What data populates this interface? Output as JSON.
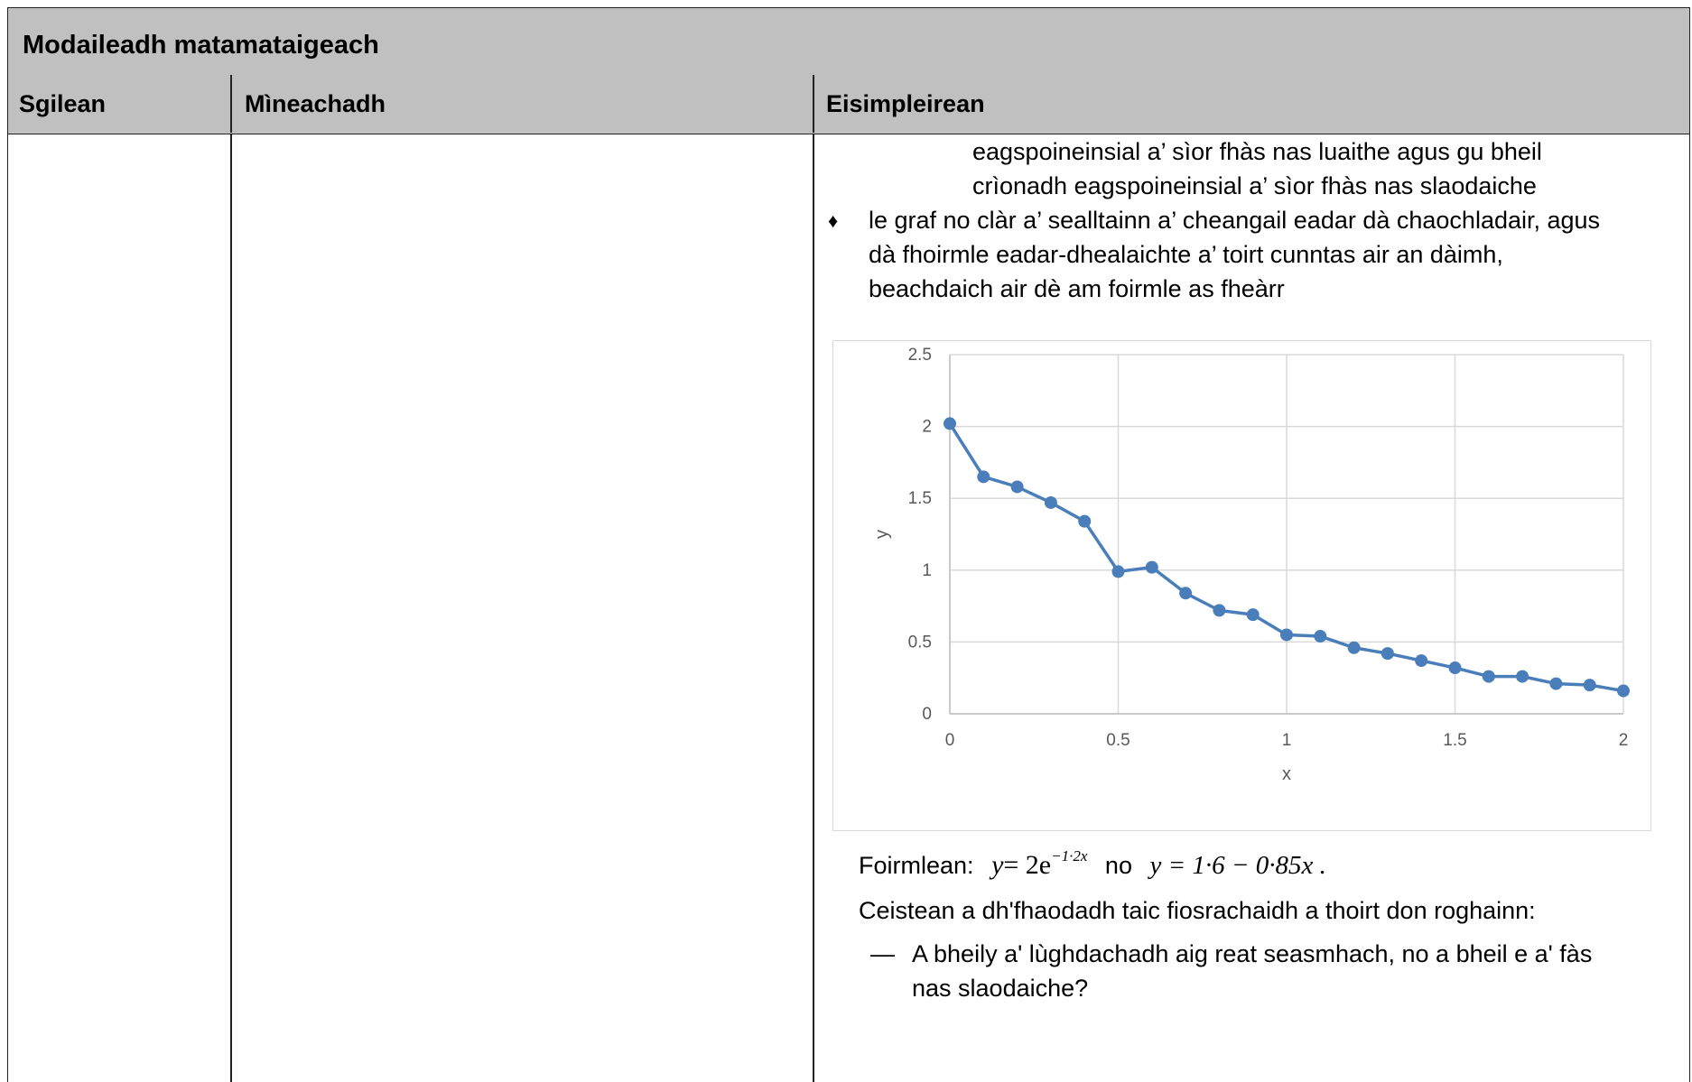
{
  "title": "Modaileadh matamataigeach",
  "headers": {
    "col1": "Sgilean",
    "col2": "Mìneachadh",
    "col3": "Eisimpleirean"
  },
  "examples": {
    "cont_line1": "eagspoineinsial a’ sìor fhàs nas luaithe agus gu bheil",
    "cont_line2": "crìonadh eagspoineinsial a’ sìor fhàs nas slaodaiche",
    "bullet_symbol": "♦",
    "bullet_line1": "le graf no clàr a’ sealltainn a’ cheangail eadar dà chaochladair, agus",
    "bullet_line2": "dà fhoirmle eadar-dhealaichte a’ toirt cunntas air an dàimh,",
    "bullet_line3": "beachdaich air dè am foirmle as fheàrr",
    "formula_label": "Foirmlean:",
    "formula1_lhs": "y",
    "formula1_rhs": "= 2e",
    "formula1_exp": "−1·2x",
    "formula_or": "no",
    "formula2": "y = 1·6 − 0·85x .",
    "question_intro": "Ceistean a dh'fhaodadh taic fiosrachaidh a thoirt don roghainn:",
    "dash": "—",
    "question_line1": "A bheily a' lùghdachadh aig reat seasmhach, no a bheil e a' fàs",
    "question_line2": "nas slaodaiche?"
  },
  "chart_data": {
    "type": "line",
    "xlabel": "x",
    "ylabel": "y",
    "xlim": [
      0,
      2
    ],
    "ylim": [
      0,
      2.5
    ],
    "xticks": [
      "0",
      "0.5",
      "1",
      "1.5",
      "2"
    ],
    "yticks": [
      "0",
      "0.5",
      "1",
      "1.5",
      "2",
      "2.5"
    ],
    "grid": true,
    "color": "#4a7ebb",
    "x": [
      0,
      0.1,
      0.2,
      0.3,
      0.4,
      0.5,
      0.6,
      0.7,
      0.8,
      0.9,
      1.0,
      1.1,
      1.2,
      1.3,
      1.4,
      1.5,
      1.6,
      1.7,
      1.8,
      1.9,
      2.0
    ],
    "y": [
      2.02,
      1.65,
      1.58,
      1.47,
      1.34,
      0.99,
      1.02,
      0.84,
      0.72,
      0.69,
      0.55,
      0.54,
      0.46,
      0.42,
      0.37,
      0.32,
      0.26,
      0.26,
      0.21,
      0.2,
      0.16
    ]
  }
}
